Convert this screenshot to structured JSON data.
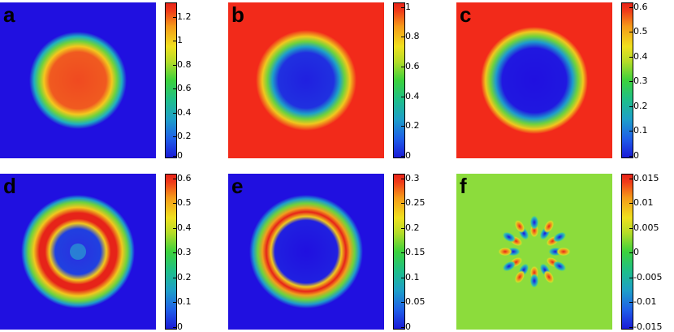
{
  "figure": {
    "panels": [
      {
        "letter": "a",
        "background": "#2010e0",
        "ticks": [
          "1.2",
          "1",
          "0.8",
          "0.6",
          "0.4",
          "0.2",
          "0"
        ],
        "tick_values": [
          1.2,
          1.0,
          0.8,
          0.6,
          0.4,
          0.2,
          0
        ],
        "range": [
          0,
          1.3
        ]
      },
      {
        "letter": "b",
        "background": "#f22a1a",
        "ticks": [
          "1",
          "0.8",
          "0.6",
          "0.4",
          "0.2",
          "0"
        ],
        "tick_values": [
          1.0,
          0.8,
          0.6,
          0.4,
          0.2,
          0
        ],
        "range": [
          0,
          1.0
        ]
      },
      {
        "letter": "c",
        "background": "#f22a1a",
        "ticks": [
          "0.6",
          "0.5",
          "0.4",
          "0.3",
          "0.2",
          "0.1",
          "0"
        ],
        "tick_values": [
          0.6,
          0.5,
          0.4,
          0.3,
          0.2,
          0.1,
          0
        ],
        "range": [
          0,
          0.6
        ]
      },
      {
        "letter": "d",
        "background": "#2010e0",
        "ticks": [
          "0.6",
          "0.5",
          "0.4",
          "0.3",
          "0.2",
          "0.1",
          "0"
        ],
        "tick_values": [
          0.6,
          0.5,
          0.4,
          0.3,
          0.2,
          0.1,
          0
        ],
        "range": [
          0,
          0.6
        ]
      },
      {
        "letter": "e",
        "background": "#2010e0",
        "ticks": [
          "0.3",
          "0.25",
          "0.2",
          "0.15",
          "0.1",
          "0.05",
          "0"
        ],
        "tick_values": [
          0.3,
          0.25,
          0.2,
          0.15,
          0.1,
          0.05,
          0
        ],
        "range": [
          0,
          0.3
        ]
      },
      {
        "letter": "f",
        "background": "#8cdc3c",
        "ticks": [
          "0.015",
          "0.01",
          "0.005",
          "0",
          "-0.005",
          "-0.01",
          "-0.015"
        ],
        "tick_values": [
          0.015,
          0.01,
          0.005,
          0,
          -0.005,
          -0.01,
          -0.015
        ],
        "range": [
          -0.015,
          0.015
        ]
      }
    ]
  }
}
